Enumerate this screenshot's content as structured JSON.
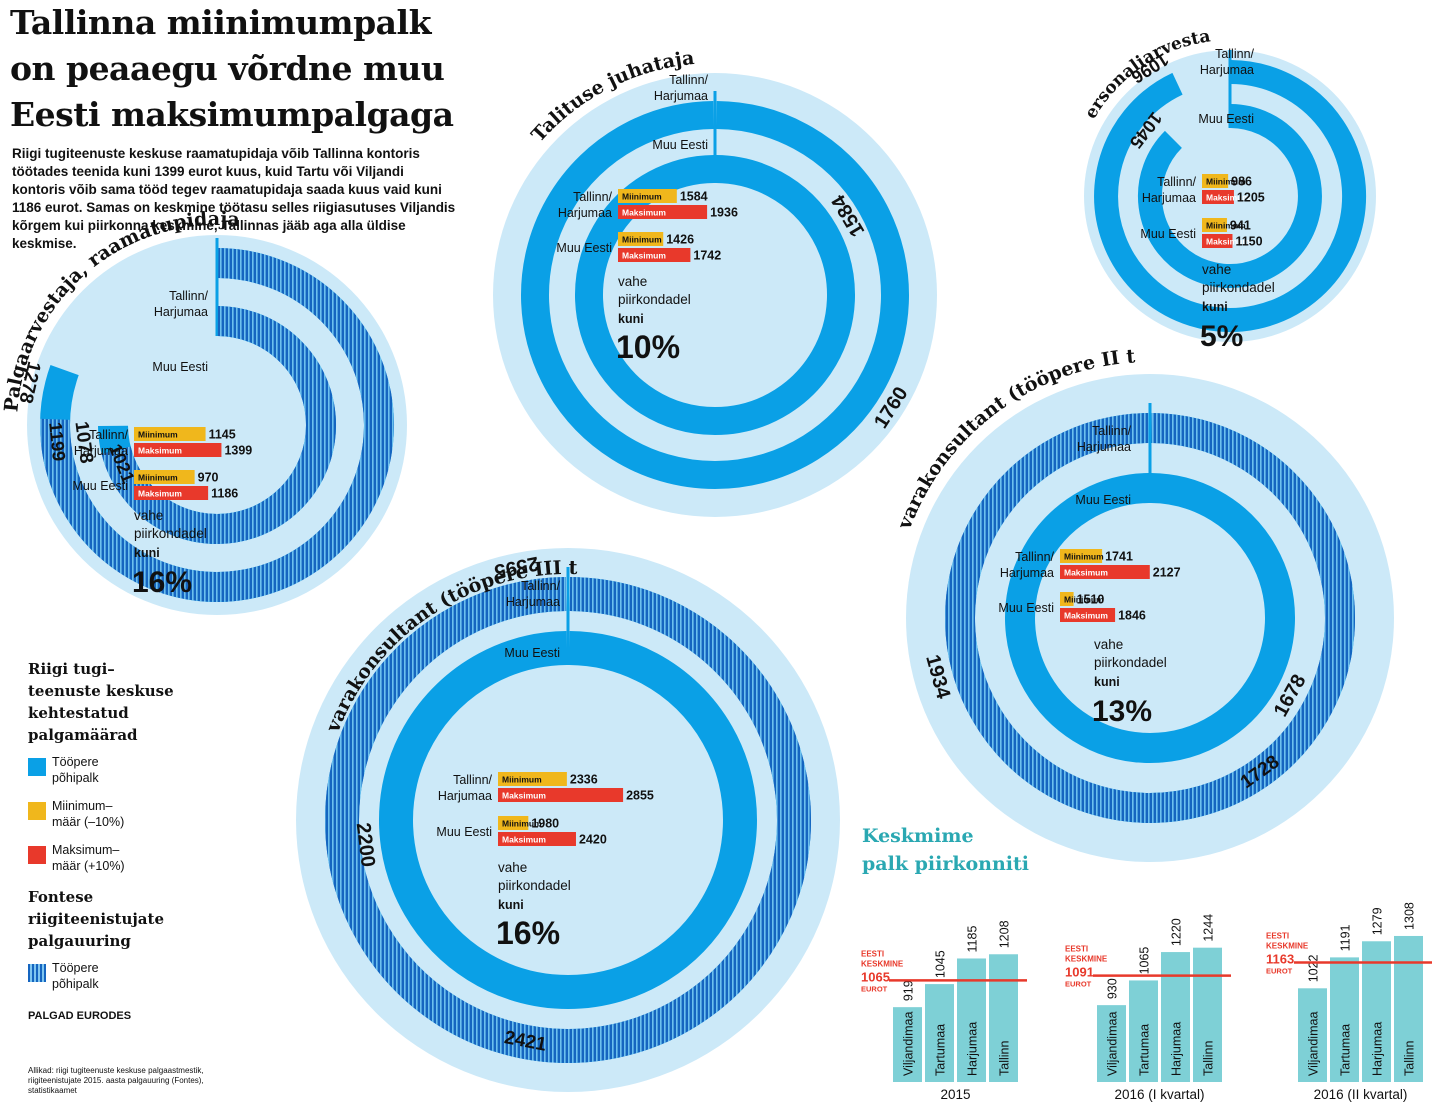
{
  "title": "Tallinna miinimumpalk on peaaegu võrdne muu Eesti maksimumpalgaga",
  "intro": "Riigi tugiteenuste keskuse raamatupidaja võib Tallinna kontoris töötades teenida kuni 1399 eurot kuus, kuid Tartu või Viljandi kontoris võib sama tööd tegev raamatupidaja saada kuus vaid kuni 1186 eurot. Samas on keskmine töötasu selles riigiasutuses Viljandis kõrgem kui piirkonna keskmine, Tallinnas jääb aga alla üldise keskmise.",
  "legend": {
    "heading1": [
      "Riigi tugi–",
      "teenuste keskuse",
      "kehtestatud",
      "palgamäärad"
    ],
    "items": [
      {
        "lines": [
          "Tööpere",
          "põhipalk"
        ],
        "key": "base"
      },
      {
        "lines": [
          "Miinimum–",
          "määr (–10%)"
        ],
        "key": "min"
      },
      {
        "lines": [
          "Maksimum–",
          "määr (+10%)"
        ],
        "key": "max"
      }
    ],
    "heading2": [
      "Fontese",
      "riigiteenistujate",
      "palgauuring"
    ],
    "item2": {
      "lines": [
        "Tööpere",
        "põhipalk"
      ],
      "key": "survey"
    },
    "currency": "PALGAD EURODES"
  },
  "sources": [
    "Allikad: riigi tugiteenuste keskuse palgaastmestik,",
    "riigiteenistujate 2015. aasta palgauuring (Fontes),",
    "statistikaamet"
  ],
  "colors": {
    "circle_bg": "#cce9f8",
    "base": "#0aa0e6",
    "survey": "#1565c0",
    "min": "#f0b71c",
    "max": "#e8392b",
    "avg_bar": "#7ed0d6",
    "avg_title": "#2aa8b2",
    "avg_line": "#e8392b"
  },
  "common_labels": {
    "tallinn": [
      "Tallinn/",
      "Harjumaa"
    ],
    "muu": "Muu Eesti",
    "min": "Miinimum",
    "max": "Maksimum",
    "vahe": [
      "vahe",
      "piirkondadel"
    ],
    "kuni": "kuni"
  },
  "chart_data": [
    {
      "type": "radial-bar",
      "title": "Palgaarvestaja, raamatupidaja",
      "regions": [
        {
          "name": "Tallinn/Harjumaa",
          "base": 1278,
          "survey": 1199,
          "min": 1145,
          "max": 1399
        },
        {
          "name": "Muu Eesti",
          "base": 1078,
          "survey": 1021,
          "min": 970,
          "max": 1186
        }
      ],
      "difference": "16%",
      "has_survey": true
    },
    {
      "type": "radial-bar",
      "title": "Talituse juhataja",
      "regions": [
        {
          "name": "Tallinn/Harjumaa",
          "base": 1760,
          "min": 1584,
          "max": 1936
        },
        {
          "name": "Muu Eesti",
          "base": 1584,
          "min": 1426,
          "max": 1742
        }
      ],
      "difference": "10%",
      "has_survey": false
    },
    {
      "type": "radial-bar",
      "title": "Personaliarvestaja",
      "regions": [
        {
          "name": "Tallinn/Harjumaa",
          "base": 1096,
          "min": 986,
          "max": 1205
        },
        {
          "name": "Muu Eesti",
          "base": 1045,
          "min": 941,
          "max": 1150
        }
      ],
      "difference": "5%",
      "has_survey": false
    },
    {
      "type": "radial-bar",
      "title": "Tarkvarakonsultant (tööpere III tase)",
      "regions": [
        {
          "name": "Tallinn/Harjumaa",
          "base": 2595,
          "survey": 2421,
          "min": 2336,
          "max": 2855
        },
        {
          "name": "Muu Eesti",
          "base": 2200,
          "min": 1980,
          "max": 2420
        }
      ],
      "difference": "16%",
      "has_survey": true
    },
    {
      "type": "radial-bar",
      "title": "Tarkvarakonsultant (tööpere II tase)",
      "regions": [
        {
          "name": "Tallinn/Harjumaa",
          "base": 1934,
          "survey": 1728,
          "min": 1741,
          "max": 2127
        },
        {
          "name": "Muu Eesti",
          "base": 1678,
          "min": 1510,
          "max": 1846
        }
      ],
      "difference": "13%",
      "has_survey": true
    },
    {
      "type": "bar",
      "title": "Keskmime palk piirkonniti",
      "categories": [
        "Viljandimaa",
        "Tartumaa",
        "Harjumaa",
        "Tallinn"
      ],
      "avg_label": [
        "EESTI",
        "KESKMINE"
      ],
      "unit": "EUROT",
      "groups": [
        {
          "period": "2015",
          "values": [
            919,
            1045,
            1185,
            1208
          ],
          "average": 1065
        },
        {
          "period": "2016 (I kvartal)",
          "values": [
            930,
            1065,
            1220,
            1244
          ],
          "average": 1091
        },
        {
          "period": "2016 (II kvartal)",
          "values": [
            1022,
            1191,
            1279,
            1308
          ],
          "average": 1163
        }
      ]
    }
  ]
}
